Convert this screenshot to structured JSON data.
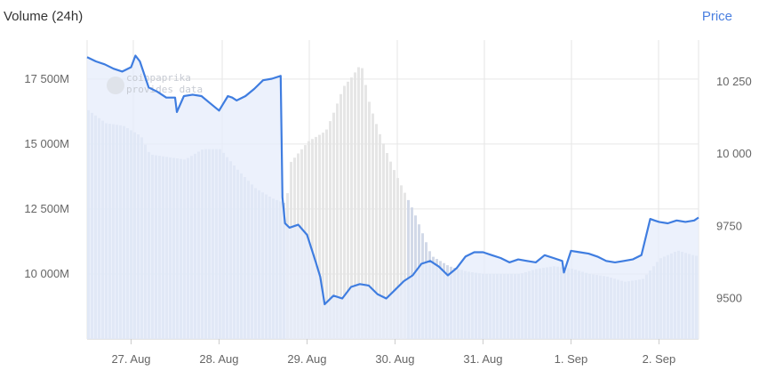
{
  "header": {
    "volume_title": "Volume (24h)",
    "price_toggle": "Price"
  },
  "watermark": {
    "line1": "coinpaprika",
    "line2": "provides data"
  },
  "colors": {
    "price_line": "#3f7de0",
    "price_fill": "#e6ecfb",
    "volume_bar": "#cdd5e6",
    "volume_bar_grey": "#e3e3e3",
    "grid": "#e6e6e6"
  },
  "chart_data": {
    "type": "line",
    "title": "Volume (24h)",
    "left_axis": {
      "label": "Volume (24h)",
      "range": [
        7500000,
        19000000
      ],
      "ticks": [
        10000000,
        12500000,
        15000000,
        17500000
      ],
      "tick_labels": [
        "10 000M",
        "12 500M",
        "15 000M",
        "17 500M"
      ]
    },
    "right_axis": {
      "label": "Price",
      "range": [
        9360,
        10394
      ],
      "ticks": [
        9500,
        9750,
        10000,
        10250
      ],
      "tick_labels": [
        "9500",
        "9750",
        "10 000",
        "10 250"
      ]
    },
    "x_axis": {
      "range": [
        26.5,
        33.45
      ],
      "ticks": [
        27,
        28,
        29,
        30,
        31,
        32,
        33
      ],
      "tick_labels": [
        "27. Aug",
        "28. Aug",
        "29. Aug",
        "30. Aug",
        "31. Aug",
        "1. Sep",
        "2. Sep"
      ]
    },
    "series": [
      {
        "name": "Price",
        "axis": "right",
        "x": [
          26.5,
          26.6,
          26.7,
          26.8,
          26.9,
          27.0,
          27.05,
          27.1,
          27.2,
          27.3,
          27.4,
          27.5,
          27.52,
          27.6,
          27.7,
          27.8,
          27.9,
          28.0,
          28.1,
          28.15,
          28.2,
          28.3,
          28.4,
          28.5,
          28.6,
          28.7,
          28.72,
          28.75,
          28.8,
          28.9,
          29.0,
          29.1,
          29.15,
          29.2,
          29.3,
          29.4,
          29.5,
          29.6,
          29.7,
          29.8,
          29.9,
          30.0,
          30.1,
          30.2,
          30.3,
          30.4,
          30.5,
          30.6,
          30.7,
          30.8,
          30.9,
          31.0,
          31.1,
          31.2,
          31.3,
          31.4,
          31.5,
          31.6,
          31.7,
          31.8,
          31.9,
          31.92,
          32.0,
          32.1,
          32.2,
          32.3,
          32.4,
          32.5,
          32.6,
          32.7,
          32.8,
          32.9,
          32.95,
          33.0,
          33.1,
          33.2,
          33.3,
          33.4,
          33.45
        ],
        "y": [
          10335,
          10320,
          10310,
          10295,
          10285,
          10300,
          10340,
          10320,
          10230,
          10215,
          10195,
          10195,
          10145,
          10200,
          10205,
          10200,
          10175,
          10150,
          10200,
          10195,
          10185,
          10200,
          10225,
          10255,
          10260,
          10270,
          9850,
          9760,
          9745,
          9755,
          9720,
          9625,
          9575,
          9480,
          9510,
          9500,
          9540,
          9550,
          9545,
          9515,
          9500,
          9530,
          9560,
          9580,
          9620,
          9630,
          9610,
          9580,
          9605,
          9645,
          9660,
          9660,
          9650,
          9640,
          9625,
          9635,
          9630,
          9625,
          9650,
          9640,
          9630,
          9590,
          9665,
          9660,
          9655,
          9645,
          9630,
          9625,
          9630,
          9635,
          9650,
          9775,
          9770,
          9765,
          9760,
          9770,
          9765,
          9770,
          9780
        ]
      },
      {
        "name": "Volume (24h)",
        "axis": "left",
        "type": "bar",
        "x": [
          26.5,
          26.7,
          26.9,
          27.0,
          27.1,
          27.2,
          27.4,
          27.6,
          27.8,
          28.0,
          28.2,
          28.4,
          28.6,
          28.75,
          28.8,
          29.0,
          29.2,
          29.3,
          29.4,
          29.5,
          29.6,
          29.7,
          29.8,
          29.9,
          30.0,
          30.2,
          30.4,
          30.6,
          30.8,
          31.0,
          31.2,
          31.4,
          31.6,
          31.8,
          32.0,
          32.2,
          32.4,
          32.6,
          32.8,
          33.0,
          33.2,
          33.4
        ],
        "values": [
          16300000,
          15800000,
          15700000,
          15500000,
          15300000,
          14600000,
          14500000,
          14400000,
          14800000,
          14800000,
          14000000,
          13300000,
          12900000,
          12700000,
          14300000,
          15100000,
          15500000,
          16300000,
          17200000,
          17600000,
          18100000,
          16500000,
          15500000,
          14600000,
          13800000,
          12400000,
          10700000,
          10300000,
          10100000,
          10000000,
          10000000,
          10000000,
          10200000,
          10300000,
          10200000,
          10000000,
          9900000,
          9700000,
          9800000,
          10600000,
          10900000,
          10700000
        ]
      }
    ],
    "grid": true,
    "legend": "none"
  }
}
